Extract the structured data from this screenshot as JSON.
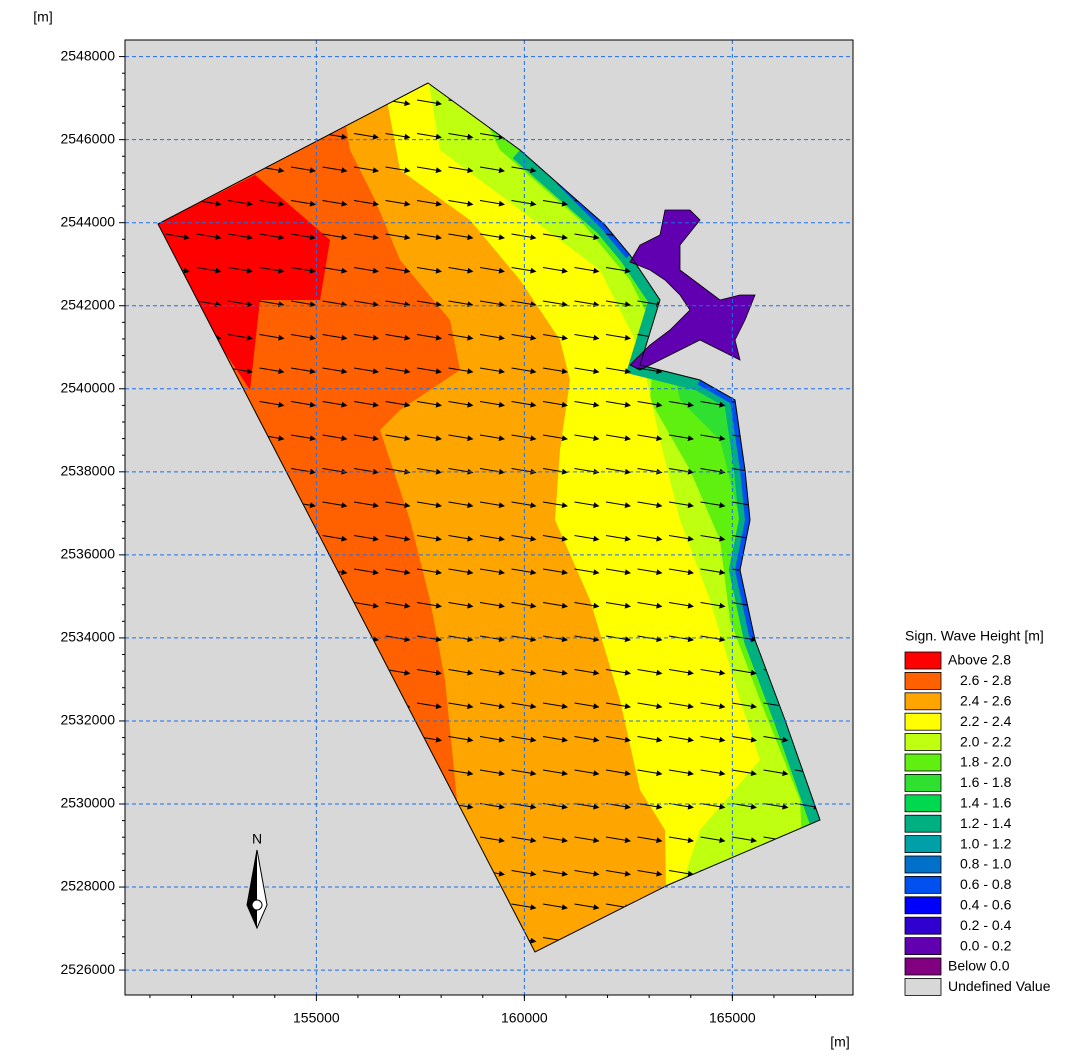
{
  "chart_data": {
    "type": "contour",
    "x_label": "[m]",
    "y_label": "[m]",
    "xlim": [
      150400,
      167900
    ],
    "xticks": [
      155000,
      160000,
      165000
    ],
    "ylim": [
      2525400,
      2548400
    ],
    "yticks": [
      2526000,
      2528000,
      2530000,
      2532000,
      2534000,
      2536000,
      2538000,
      2540000,
      2542000,
      2544000,
      2546000,
      2548000
    ],
    "grid": true,
    "compass": "N",
    "legend": {
      "title": "Sign. Wave Height [m]",
      "position": "lower right",
      "entries": [
        {
          "label": "Above 2.8",
          "color": "#ff0000"
        },
        {
          "label": "2.6 - 2.8",
          "color": "#ff6000"
        },
        {
          "label": "2.4 - 2.6",
          "color": "#ffa500"
        },
        {
          "label": "2.2 - 2.4",
          "color": "#ffff00"
        },
        {
          "label": "2.0 - 2.2",
          "color": "#bfff10"
        },
        {
          "label": "1.8 - 2.0",
          "color": "#60f010"
        },
        {
          "label": "1.6 - 1.8",
          "color": "#30e030"
        },
        {
          "label": "1.4 - 1.6",
          "color": "#00d850"
        },
        {
          "label": "1.2 - 1.4",
          "color": "#00b080"
        },
        {
          "label": "1.0 - 1.2",
          "color": "#00a0a8"
        },
        {
          "label": "0.8 - 1.0",
          "color": "#0070c8"
        },
        {
          "label": "0.6 - 0.8",
          "color": "#0050f0"
        },
        {
          "label": "0.4 - 0.6",
          "color": "#0000ff"
        },
        {
          "label": "0.2 - 0.4",
          "color": "#3000d0"
        },
        {
          "label": "0.0 - 0.2",
          "color": "#6000b0"
        },
        {
          "label": "Below 0.0",
          "color": "#800080"
        },
        {
          "label": "Undefined Value",
          "color": "#d8d8d8"
        }
      ]
    }
  }
}
